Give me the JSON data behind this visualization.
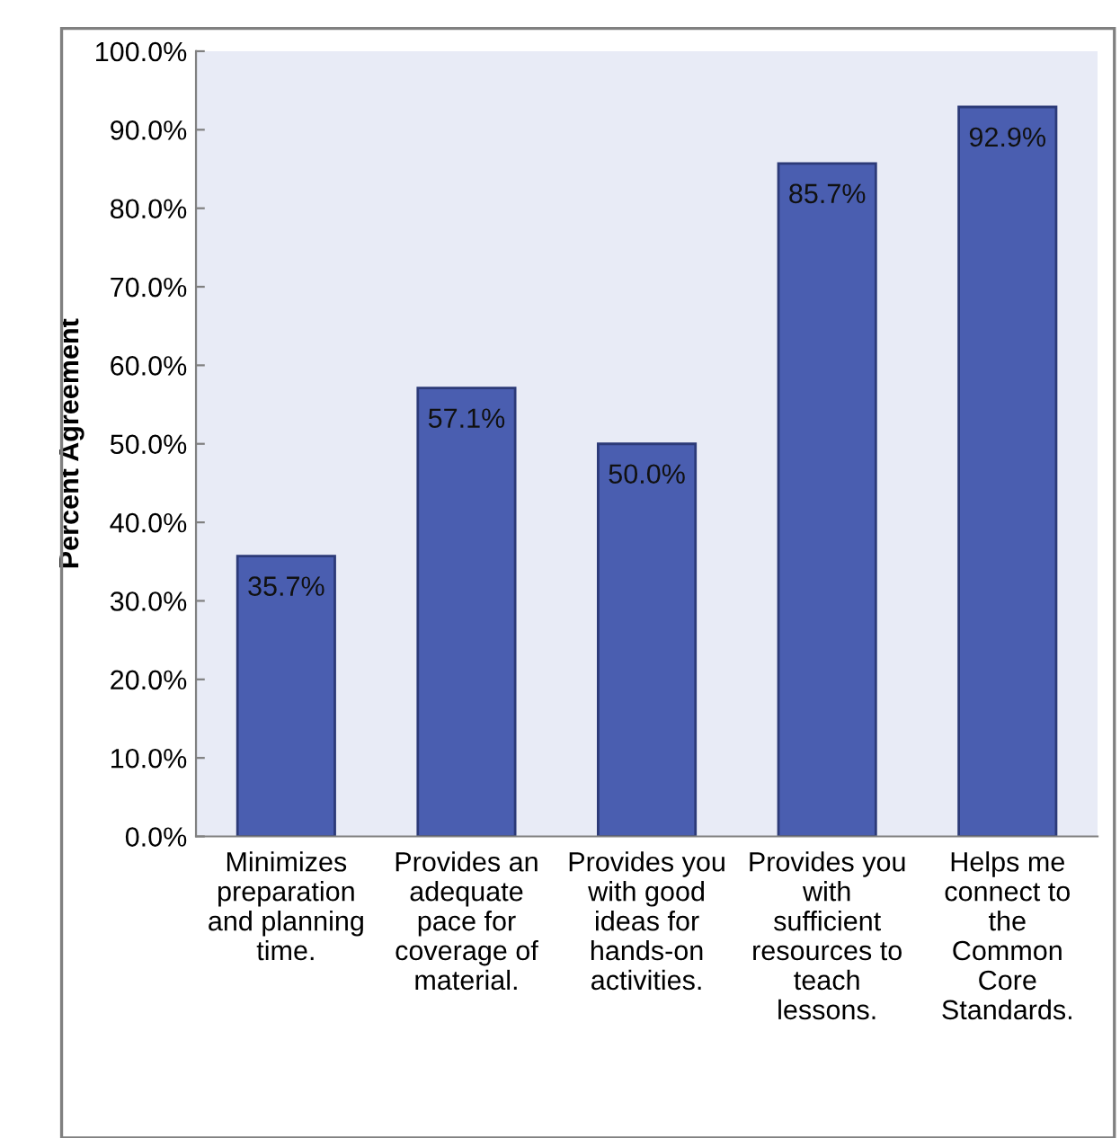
{
  "chart_data": {
    "type": "bar",
    "ylabel": "Percent Agreement",
    "categories": [
      "Minimizes\npreparation\nand planning\ntime.",
      "Provides an\nadequate\npace for\ncoverage of\nmaterial.",
      "Provides you\nwith good\nideas for\nhands-on\nactivities.",
      "Provides you\nwith\nsufficient\nresources to\nteach\nlessons.",
      "Helps me\nconnect to\nthe\nCommon\nCore\nStandards."
    ],
    "values": [
      35.7,
      57.1,
      50.0,
      85.7,
      92.9
    ],
    "value_labels": [
      "35.7%",
      "57.1%",
      "50.0%",
      "85.7%",
      "92.9%"
    ],
    "color": "#4a5eb0",
    "ylim": [
      0,
      100
    ],
    "yticks": [
      {
        "value": 0,
        "label": "0.0%"
      },
      {
        "value": 10,
        "label": "10.0%"
      },
      {
        "value": 20,
        "label": "20.0%"
      },
      {
        "value": 30,
        "label": "30.0%"
      },
      {
        "value": 40,
        "label": "40.0%"
      },
      {
        "value": 50,
        "label": "50.0%"
      },
      {
        "value": 60,
        "label": "60.0%"
      },
      {
        "value": 70,
        "label": "70.0%"
      },
      {
        "value": 80,
        "label": "80.0%"
      },
      {
        "value": 90,
        "label": "90.0%"
      },
      {
        "value": 100,
        "label": "100.0%"
      }
    ],
    "grid": false,
    "legend": false
  }
}
